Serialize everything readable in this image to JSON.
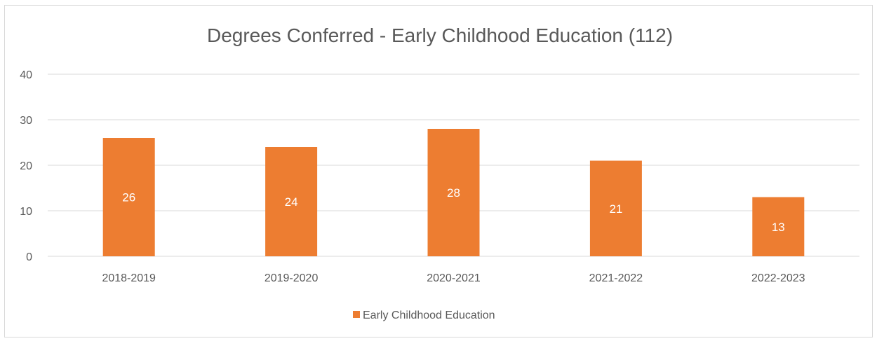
{
  "chart_data": {
    "type": "bar",
    "title": "Degrees Conferred - Early Childhood Education (112)",
    "categories": [
      "2018-2019",
      "2019-2020",
      "2020-2021",
      "2021-2022",
      "2022-2023"
    ],
    "series": [
      {
        "name": "Early Childhood Education",
        "values": [
          26,
          24,
          28,
          21,
          13
        ],
        "color": "#ED7D31"
      }
    ],
    "ylim": [
      0,
      40
    ],
    "yticks": [
      0,
      10,
      20,
      30,
      40
    ],
    "grid": true,
    "legend": "bottom",
    "data_labels": true
  }
}
